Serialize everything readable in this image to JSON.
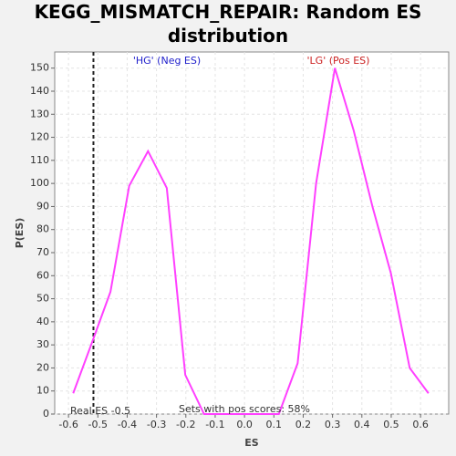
{
  "chart_data": {
    "type": "line",
    "title": "KEGG_MISMATCH_REPAIR: Random ES distribution",
    "x_label": "ES",
    "y_label": "P(ES)",
    "x": [
      -0.584,
      -0.52,
      -0.457,
      -0.393,
      -0.329,
      -0.265,
      -0.202,
      -0.138,
      -0.074,
      -0.01,
      0.053,
      0.117,
      0.181,
      0.244,
      0.308,
      0.372,
      0.436,
      0.499,
      0.563,
      0.627
    ],
    "series": [
      {
        "name": "P(ES)",
        "color": "#ff40ff",
        "values": [
          9,
          31,
          53,
          99,
          114,
          98,
          17,
          0,
          0,
          0,
          0,
          0,
          22,
          100,
          150,
          123,
          90,
          61,
          20,
          9
        ]
      }
    ],
    "xlim": [
      -0.647,
      0.696
    ],
    "ylim": [
      0,
      157
    ],
    "xticks": [
      -0.6,
      -0.5,
      -0.4,
      -0.3,
      -0.2,
      -0.1,
      {
        "value": 0,
        "label": "0.0"
      },
      0.1,
      0.2,
      0.3,
      0.4,
      0.5,
      0.6
    ],
    "yticks": [
      0,
      10,
      20,
      30,
      40,
      50,
      60,
      70,
      80,
      90,
      100,
      110,
      120,
      130,
      140,
      150
    ],
    "grid": true,
    "real_es": -0.515,
    "annotations": [
      "'HG' (Neg ES)",
      "'LG' (Pos ES)",
      "Real ES -0.5",
      "Sets with pos scores: 58%"
    ]
  }
}
